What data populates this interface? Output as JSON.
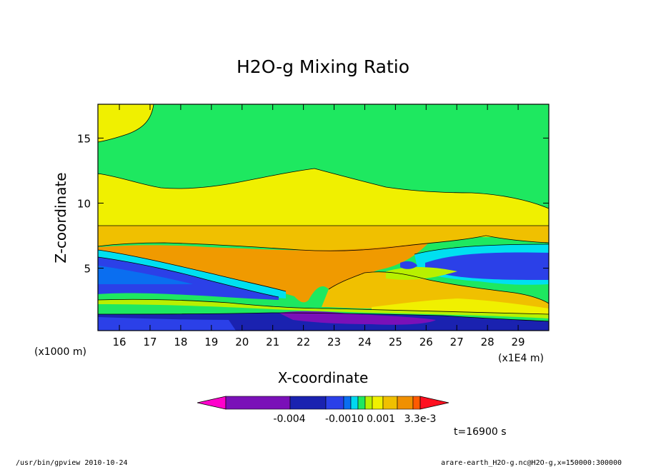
{
  "chart_data": {
    "type": "heatmap",
    "title": "H2O-g Mixing Ratio",
    "xlabel": "X-coordinate",
    "ylabel": "Z-coordinate",
    "x_scale_label": "(x1E4 m)",
    "y_scale_label": "(x1000 m)",
    "xlim": [
      15.3,
      30.0
    ],
    "ylim": [
      0.2,
      17.6
    ],
    "x_ticks": [
      "16",
      "17",
      "18",
      "19",
      "20",
      "21",
      "22",
      "23",
      "24",
      "25",
      "26",
      "27",
      "28",
      "29"
    ],
    "x_tick_values": [
      16,
      17,
      18,
      19,
      20,
      21,
      22,
      23,
      24,
      25,
      26,
      27,
      28,
      29
    ],
    "y_ticks": [
      "5",
      "10",
      "15"
    ],
    "y_tick_values": [
      5,
      10,
      15
    ],
    "time_label": "t=16900 s",
    "colorbar": {
      "labels": [
        "-0.004",
        "-0.0010",
        "0.001",
        "3.3e-3"
      ],
      "colors": [
        "#ff00cc",
        "#7a10b8",
        "#1a22b0",
        "#2b40e8",
        "#0a6ef0",
        "#00d8f0",
        "#1ee860",
        "#b8f000",
        "#f0f000",
        "#f0c000",
        "#f09000",
        "#ff5a00",
        "#ff1020"
      ]
    },
    "palette": {
      "magenta": "#ff00cc",
      "purple": "#7a10b8",
      "navy": "#1a22b0",
      "blue": "#2b40e8",
      "sky": "#0a6ef0",
      "cyan": "#00e0f0",
      "green": "#1ee860",
      "lime": "#b8f000",
      "yellow": "#f0f000",
      "gold": "#f0c000",
      "orange": "#f09a00",
      "redorange": "#ff5a00",
      "red": "#ff1020"
    }
  },
  "footer": {
    "left": "/usr/bin/gpview  2010-10-24",
    "right": "arare-earth_H2O-g.nc@H2O-g,x=150000:300000"
  }
}
